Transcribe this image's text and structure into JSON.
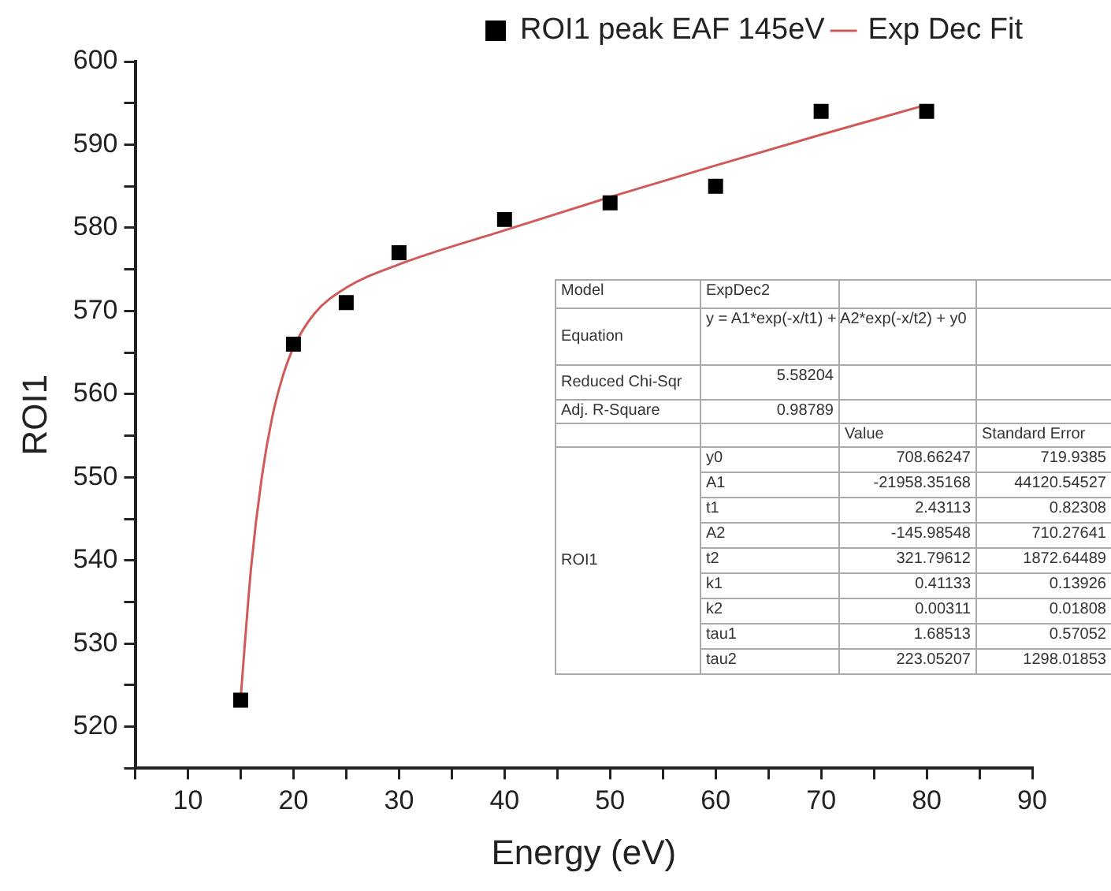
{
  "chart_data": {
    "type": "scatter",
    "xlabel": "Energy (eV)",
    "ylabel": "ROI1",
    "xlim": [
      5,
      90
    ],
    "xticks": [
      {
        "value": 5,
        "label": null
      },
      10,
      {
        "value": 15,
        "label": null
      },
      20,
      {
        "value": 25,
        "label": null
      },
      30,
      {
        "value": 35,
        "label": null
      },
      40,
      {
        "value": 45,
        "label": null
      },
      50,
      {
        "value": 55,
        "label": null
      },
      60,
      {
        "value": 65,
        "label": null
      },
      70,
      {
        "value": 75,
        "label": null
      },
      80,
      {
        "value": 85,
        "label": null
      },
      90
    ],
    "ylim": [
      515,
      600
    ],
    "yticks": [
      {
        "value": 515,
        "label": null
      },
      520,
      {
        "value": 525,
        "label": null
      },
      530,
      {
        "value": 535,
        "label": null
      },
      540,
      {
        "value": 545,
        "label": null
      },
      550,
      {
        "value": 555,
        "label": null
      },
      560,
      {
        "value": 565,
        "label": null
      },
      570,
      {
        "value": 575,
        "label": null
      },
      580,
      {
        "value": 585,
        "label": null
      },
      590,
      {
        "value": 595,
        "label": null
      },
      600
    ],
    "grid": false,
    "legend": "top right",
    "series": [
      {
        "name": "ROI1 peak EAF 145eV",
        "marker": "square",
        "color": "#000000",
        "x": [
          15,
          20,
          25,
          30,
          40,
          50,
          60,
          70,
          80
        ],
        "values": [
          523.2,
          566,
          571,
          577,
          581,
          583,
          585,
          594,
          594
        ]
      },
      {
        "name": "Exp Dec Fit",
        "type": "line",
        "marker": "none",
        "color": "#d05a5a",
        "x": [
          15,
          16,
          17,
          18,
          19,
          20,
          22,
          25,
          30,
          40,
          50,
          60,
          70,
          80
        ],
        "values": [
          523.5,
          539.3,
          550.0,
          557.3,
          562.2,
          565.6,
          569.7,
          572.8,
          575.6,
          579.7,
          583.7,
          587.5,
          591.2,
          594.8
        ]
      }
    ],
    "annotations": [
      "Model",
      "ExpDec2",
      "Equation",
      "y = A1*exp(-x/t1) + A2*exp(-x/t2) + y0",
      "Reduced Chi-Sqr",
      "5.58204",
      "Adj. R-Square",
      "0.98789",
      "Value",
      "Standard Error",
      "ROI1",
      "y0",
      "708.66247",
      "719.9385",
      "A1",
      "-21958.35168",
      "44120.54527",
      "t1",
      "2.43113",
      "0.82308",
      "A2",
      "-145.98548",
      "710.27641",
      "t2",
      "321.79612",
      "1872.64489",
      "k1",
      "0.41133",
      "0.13926",
      "k2",
      "0.00311",
      "0.01808",
      "tau1",
      "1.68513",
      "0.57052",
      "tau2",
      "223.05207",
      "1298.01853"
    ]
  }
}
